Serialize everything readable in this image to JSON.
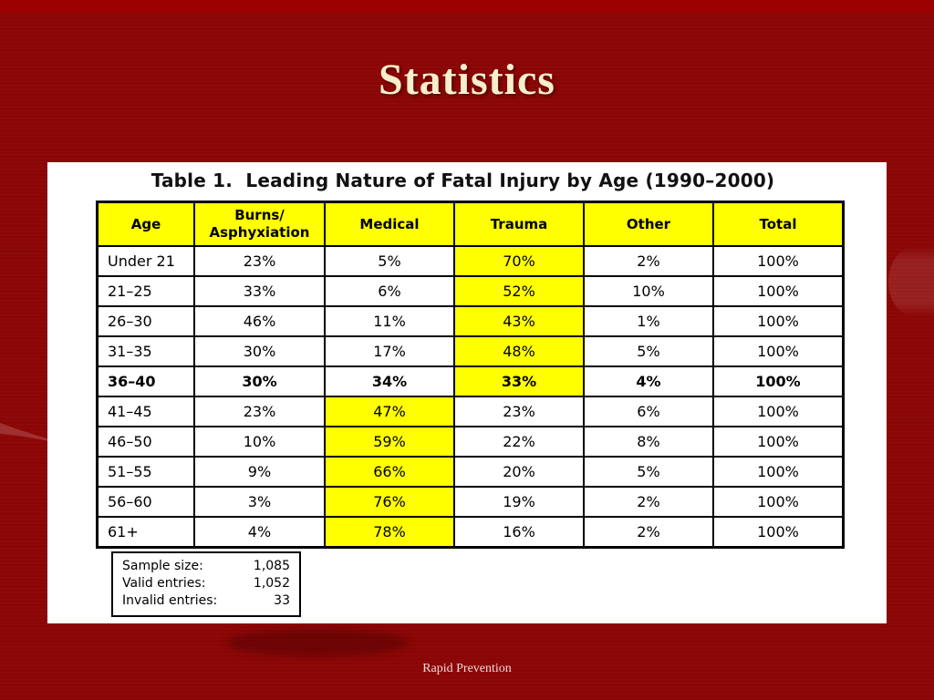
{
  "slide": {
    "title": "Statistics",
    "footer": "Rapid Prevention"
  },
  "table": {
    "caption": "Table 1.  Leading Nature of Fatal Injury by Age (1990–2000)",
    "columns": [
      {
        "key": "age",
        "label": "Age"
      },
      {
        "key": "burns",
        "label": "Burns/\nAsphyxiation"
      },
      {
        "key": "medical",
        "label": "Medical"
      },
      {
        "key": "trauma",
        "label": "Trauma"
      },
      {
        "key": "other",
        "label": "Other"
      },
      {
        "key": "total",
        "label": "Total"
      }
    ],
    "rows": [
      {
        "age": "Under 21",
        "burns": "23%",
        "medical": "5%",
        "trauma": "70%",
        "other": "2%",
        "total": "100%",
        "highlight": "trauma",
        "bold": false
      },
      {
        "age": "21–25",
        "burns": "33%",
        "medical": "6%",
        "trauma": "52%",
        "other": "10%",
        "total": "100%",
        "highlight": "trauma",
        "bold": false
      },
      {
        "age": "26–30",
        "burns": "46%",
        "medical": "11%",
        "trauma": "43%",
        "other": "1%",
        "total": "100%",
        "highlight": "trauma",
        "bold": false
      },
      {
        "age": "31–35",
        "burns": "30%",
        "medical": "17%",
        "trauma": "48%",
        "other": "5%",
        "total": "100%",
        "highlight": "trauma",
        "bold": false
      },
      {
        "age": "36–40",
        "burns": "30%",
        "medical": "34%",
        "trauma": "33%",
        "other": "4%",
        "total": "100%",
        "highlight": "trauma",
        "bold": true
      },
      {
        "age": "41–45",
        "burns": "23%",
        "medical": "47%",
        "trauma": "23%",
        "other": "6%",
        "total": "100%",
        "highlight": "medical",
        "bold": false
      },
      {
        "age": "46–50",
        "burns": "10%",
        "medical": "59%",
        "trauma": "22%",
        "other": "8%",
        "total": "100%",
        "highlight": "medical",
        "bold": false
      },
      {
        "age": "51–55",
        "burns": "9%",
        "medical": "66%",
        "trauma": "20%",
        "other": "5%",
        "total": "100%",
        "highlight": "medical",
        "bold": false
      },
      {
        "age": "56–60",
        "burns": "3%",
        "medical": "76%",
        "trauma": "19%",
        "other": "2%",
        "total": "100%",
        "highlight": "medical",
        "bold": false
      },
      {
        "age": "61+",
        "burns": "4%",
        "medical": "78%",
        "trauma": "16%",
        "other": "2%",
        "total": "100%",
        "highlight": "medical",
        "bold": false
      }
    ]
  },
  "stats_box": {
    "rows": [
      {
        "label": "Sample size:",
        "value": "1,085"
      },
      {
        "label": "Valid entries:",
        "value": "1,052"
      },
      {
        "label": "Invalid entries:",
        "value": "33"
      }
    ]
  },
  "colors": {
    "background": "#8D0606",
    "top_band": "#9B0101",
    "highlight": "#FFFF00",
    "panel": "#FFFFFF",
    "border": "#000000",
    "table_text": "#000000",
    "title_text": "#F6EFCB",
    "footer_text": "#EDD8D8"
  }
}
